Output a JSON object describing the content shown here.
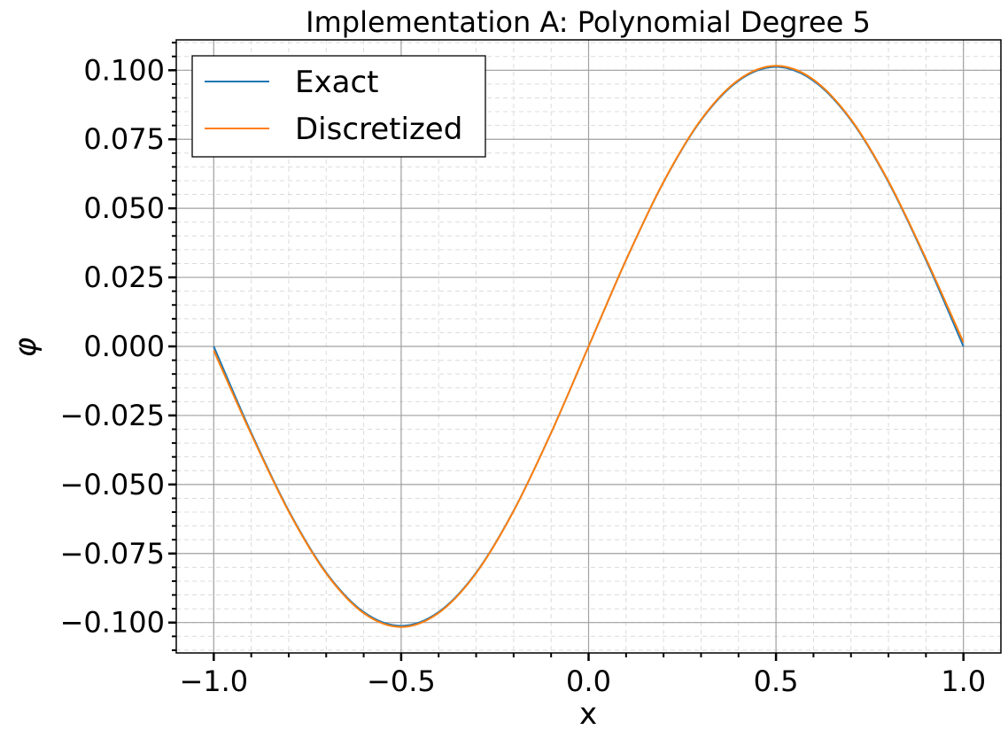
{
  "chart_data": {
    "type": "line",
    "title": "Implementation A: Polynomial Degree 5",
    "xlabel": "x",
    "ylabel": "φ",
    "xlim": [
      -1.1,
      1.1
    ],
    "ylim": [
      -0.111,
      0.111
    ],
    "xticks": [
      -1.0,
      -0.5,
      0.0,
      0.5,
      1.0
    ],
    "xtick_labels": [
      "−1.0",
      "−0.5",
      "0.0",
      "0.5",
      "1.0"
    ],
    "yticks": [
      -0.1,
      -0.075,
      -0.05,
      -0.025,
      0.0,
      0.025,
      0.05,
      0.075,
      0.1
    ],
    "ytick_labels": [
      "−0.100",
      "−0.075",
      "−0.050",
      "−0.025",
      "0.000",
      "0.025",
      "0.050",
      "0.075",
      "0.100"
    ],
    "grid": true,
    "minor_grid": true,
    "legend_position": "top-left",
    "series": [
      {
        "name": "Exact",
        "color": "#1f77b4",
        "x": [
          -1.0,
          -0.9,
          -0.8,
          -0.7,
          -0.6,
          -0.5,
          -0.4,
          -0.3,
          -0.2,
          -0.1,
          0.0,
          0.1,
          0.2,
          0.3,
          0.4,
          0.5,
          0.6,
          0.7,
          0.8,
          0.9,
          1.0
        ],
        "y": [
          0.0,
          -0.0313,
          -0.0595,
          -0.0819,
          -0.0962,
          -0.1012,
          -0.0962,
          -0.0819,
          -0.0595,
          -0.0313,
          0.0,
          0.0313,
          0.0595,
          0.0819,
          0.0962,
          0.1012,
          0.0962,
          0.0819,
          0.0595,
          0.0313,
          0.0
        ]
      },
      {
        "name": "Discretized",
        "color": "#ff7f0e",
        "x": [
          -1.0,
          -0.9,
          -0.8,
          -0.7,
          -0.6,
          -0.5,
          -0.4,
          -0.3,
          -0.2,
          -0.1,
          0.0,
          0.1,
          0.2,
          0.3,
          0.4,
          0.5,
          0.6,
          0.7,
          0.8,
          0.9,
          1.0
        ],
        "y": [
          -0.0015,
          -0.0318,
          -0.0598,
          -0.0822,
          -0.0966,
          -0.1016,
          -0.0965,
          -0.0821,
          -0.0596,
          -0.0313,
          0.0,
          0.0313,
          0.0596,
          0.0821,
          0.0965,
          0.1016,
          0.0966,
          0.0822,
          0.0598,
          0.0318,
          0.0015
        ]
      }
    ]
  }
}
